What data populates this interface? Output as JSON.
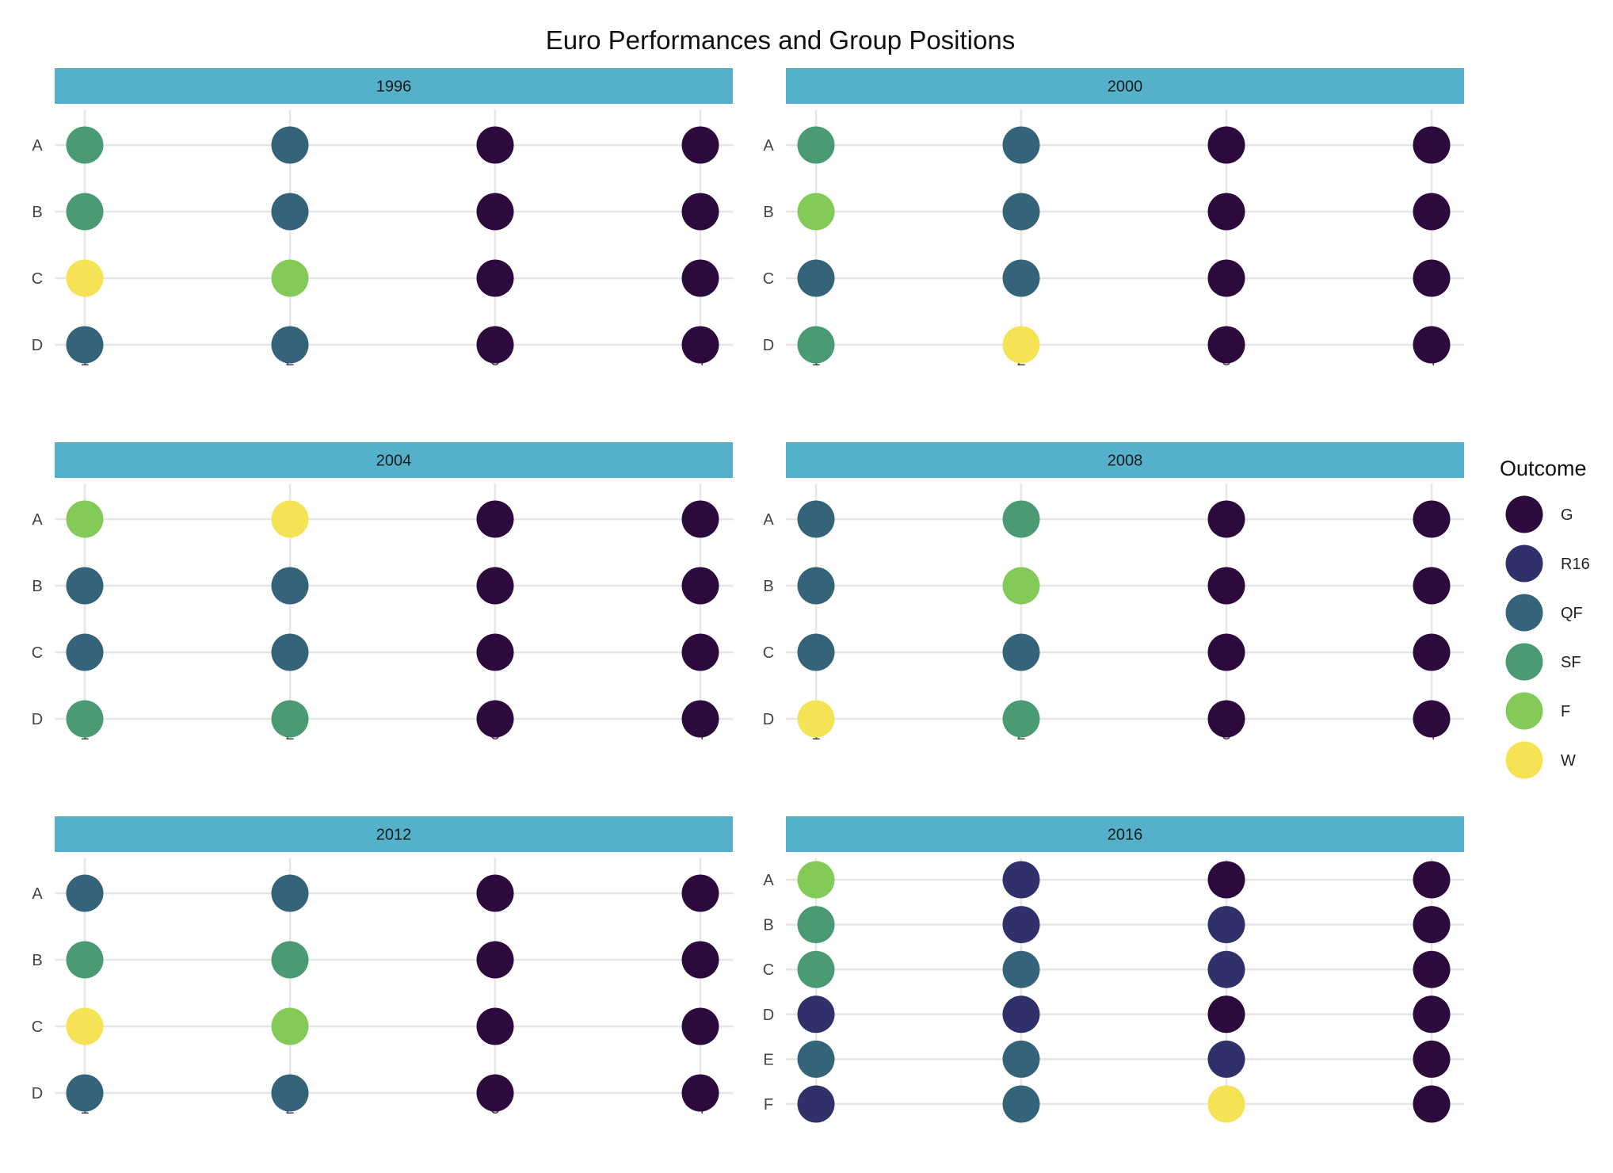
{
  "chart_data": {
    "type": "scatter",
    "title": "Euro Performances and Group Positions",
    "x_ticks": [
      "1",
      "2",
      "3",
      "4"
    ],
    "legend": {
      "title": "Outcome",
      "placement": "right",
      "levels": [
        "G",
        "R16",
        "QF",
        "SF",
        "F",
        "W"
      ],
      "colors": {
        "G": "#2c0a3d",
        "R16": "#30306b",
        "QF": "#35647a",
        "SF": "#4a9a74",
        "F": "#84ca58",
        "W": "#f6e355"
      }
    },
    "strip_color": "#55b1c9",
    "panels": [
      {
        "year": "1996",
        "groups": [
          "A",
          "B",
          "C",
          "D"
        ],
        "outcomes": [
          [
            "SF",
            "QF",
            "G",
            "G"
          ],
          [
            "SF",
            "QF",
            "G",
            "G"
          ],
          [
            "W",
            "F",
            "G",
            "G"
          ],
          [
            "QF",
            "QF",
            "G",
            "G"
          ]
        ]
      },
      {
        "year": "2000",
        "groups": [
          "A",
          "B",
          "C",
          "D"
        ],
        "outcomes": [
          [
            "SF",
            "QF",
            "G",
            "G"
          ],
          [
            "F",
            "QF",
            "G",
            "G"
          ],
          [
            "QF",
            "QF",
            "G",
            "G"
          ],
          [
            "SF",
            "W",
            "G",
            "G"
          ]
        ]
      },
      {
        "year": "2004",
        "groups": [
          "A",
          "B",
          "C",
          "D"
        ],
        "outcomes": [
          [
            "F",
            "W",
            "G",
            "G"
          ],
          [
            "QF",
            "QF",
            "G",
            "G"
          ],
          [
            "QF",
            "QF",
            "G",
            "G"
          ],
          [
            "SF",
            "SF",
            "G",
            "G"
          ]
        ]
      },
      {
        "year": "2008",
        "groups": [
          "A",
          "B",
          "C",
          "D"
        ],
        "outcomes": [
          [
            "QF",
            "SF",
            "G",
            "G"
          ],
          [
            "QF",
            "F",
            "G",
            "G"
          ],
          [
            "QF",
            "QF",
            "G",
            "G"
          ],
          [
            "W",
            "SF",
            "G",
            "G"
          ]
        ]
      },
      {
        "year": "2012",
        "groups": [
          "A",
          "B",
          "C",
          "D"
        ],
        "outcomes": [
          [
            "QF",
            "QF",
            "G",
            "G"
          ],
          [
            "SF",
            "SF",
            "G",
            "G"
          ],
          [
            "W",
            "F",
            "G",
            "G"
          ],
          [
            "QF",
            "QF",
            "G",
            "G"
          ]
        ]
      },
      {
        "year": "2016",
        "groups": [
          "A",
          "B",
          "C",
          "D",
          "E",
          "F"
        ],
        "outcomes": [
          [
            "F",
            "R16",
            "G",
            "G"
          ],
          [
            "SF",
            "R16",
            "R16",
            "G"
          ],
          [
            "SF",
            "QF",
            "R16",
            "G"
          ],
          [
            "R16",
            "R16",
            "G",
            "G"
          ],
          [
            "QF",
            "QF",
            "R16",
            "G"
          ],
          [
            "R16",
            "QF",
            "W",
            "G"
          ]
        ]
      }
    ]
  }
}
